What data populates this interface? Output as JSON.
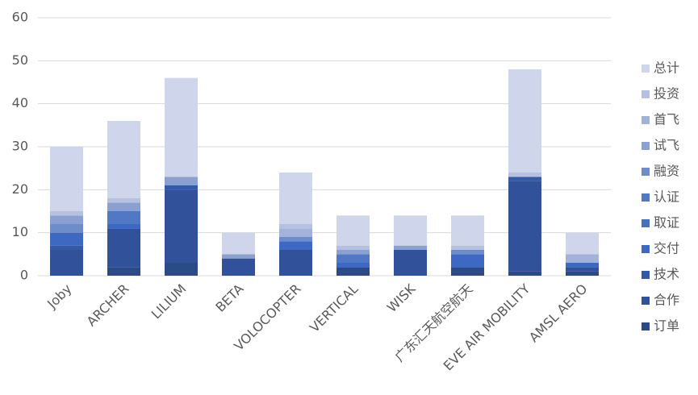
{
  "chart_data": {
    "type": "stacked-bar",
    "categories": [
      "Joby",
      "ARCHER",
      "LILIUM",
      "BETA",
      "VOLOCOPTER",
      "VERTICAL",
      "WISK",
      "广东汇天航空航天",
      "EVE AIR MOBILITY",
      "AMSL AERO"
    ],
    "series": [
      {
        "name": "订单",
        "color": "#2c4a86",
        "values": [
          0,
          2,
          3,
          0,
          0,
          2,
          0,
          2,
          1,
          1
        ]
      },
      {
        "name": "合作",
        "color": "#31529a",
        "values": [
          6,
          9,
          17,
          4,
          6,
          0,
          6,
          0,
          21,
          1
        ]
      },
      {
        "name": "技术",
        "color": "#3459a6",
        "values": [
          1,
          0,
          1,
          0,
          0,
          0,
          0,
          0,
          1,
          0
        ]
      },
      {
        "name": "交付",
        "color": "#3d68c4",
        "values": [
          3,
          1,
          0,
          0,
          2,
          1,
          0,
          3,
          0,
          1
        ]
      },
      {
        "name": "取证",
        "color": "#4670c0",
        "values": [
          0,
          0,
          0,
          0,
          0,
          0,
          0,
          0,
          0,
          0
        ]
      },
      {
        "name": "认证",
        "color": "#5178c4",
        "values": [
          0,
          3,
          0,
          0,
          0,
          2,
          0,
          0,
          0,
          0
        ]
      },
      {
        "name": "融资",
        "color": "#6e8cc9",
        "values": [
          2,
          0,
          0,
          0,
          1,
          0,
          0,
          1,
          0,
          0
        ]
      },
      {
        "name": "试飞",
        "color": "#8a9fd2",
        "values": [
          2,
          2,
          2,
          1,
          0,
          1,
          1,
          0,
          0,
          0
        ]
      },
      {
        "name": "首飞",
        "color": "#a3b2d9",
        "values": [
          0,
          0,
          0,
          0,
          2,
          0,
          0,
          0,
          0,
          2
        ]
      },
      {
        "name": "投资",
        "color": "#b6c1e1",
        "values": [
          1,
          1,
          0,
          0,
          1,
          1,
          0,
          1,
          1,
          0
        ]
      },
      {
        "name": "总计",
        "color": "#cfd5ea",
        "values": [
          15,
          18,
          23,
          5,
          12,
          7,
          7,
          7,
          24,
          5
        ]
      }
    ],
    "ylim": [
      0,
      60
    ],
    "yticks": [
      0,
      10,
      20,
      30,
      40,
      50,
      60
    ],
    "grid": true
  }
}
